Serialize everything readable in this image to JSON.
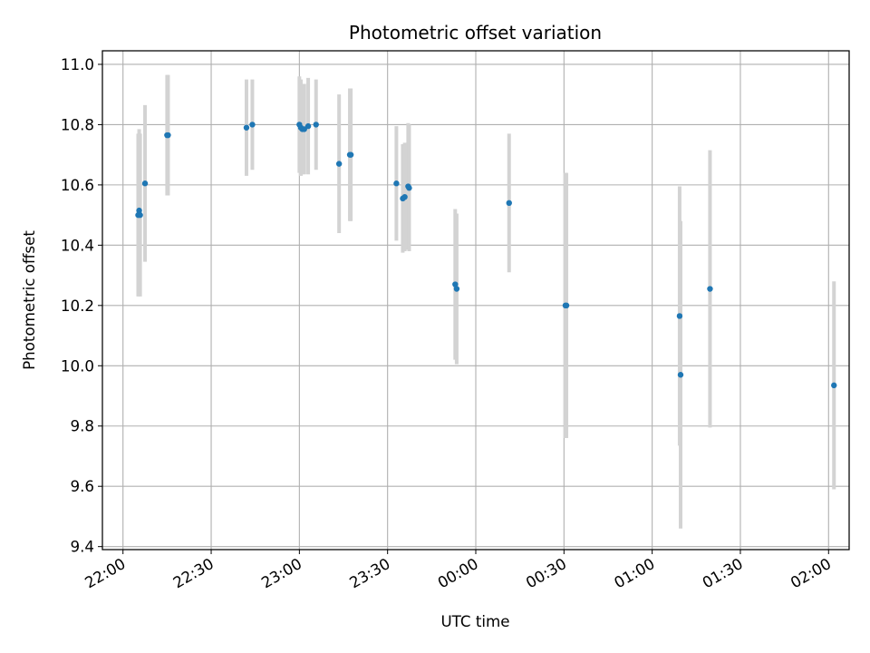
{
  "chart_data": {
    "type": "scatter",
    "title": "Photometric offset variation",
    "xlabel": "UTC time",
    "ylabel": "Photometric offset",
    "x_ticks": [
      "22:00",
      "22:30",
      "23:00",
      "23:30",
      "00:00",
      "00:30",
      "01:00",
      "01:30",
      "02:00"
    ],
    "x_range": [
      "21:53",
      "02:07"
    ],
    "y_ticks": [
      9.4,
      9.6,
      9.8,
      10.0,
      10.2,
      10.4,
      10.6,
      10.8,
      11.0
    ],
    "ylim": [
      9.39,
      11.045
    ],
    "grid": true,
    "marker_color": "#1f77b4",
    "errorbar_color": "#d3d3d3",
    "points": [
      {
        "time": "22:05:10",
        "y": 10.5,
        "err": 0.27
      },
      {
        "time": "22:05:30",
        "y": 10.515,
        "err": 0.27
      },
      {
        "time": "22:05:50",
        "y": 10.5,
        "err": 0.27
      },
      {
        "time": "22:07:30",
        "y": 10.605,
        "err": 0.26
      },
      {
        "time": "22:15:00",
        "y": 10.765,
        "err": 0.2
      },
      {
        "time": "22:15:20",
        "y": 10.765,
        "err": 0.2
      },
      {
        "time": "22:42:00",
        "y": 10.79,
        "err": 0.16
      },
      {
        "time": "22:44:00",
        "y": 10.8,
        "err": 0.15
      },
      {
        "time": "23:00:00",
        "y": 10.8,
        "err": 0.16
      },
      {
        "time": "23:00:30",
        "y": 10.79,
        "err": 0.16
      },
      {
        "time": "23:01:00",
        "y": 10.785,
        "err": 0.15
      },
      {
        "time": "23:01:40",
        "y": 10.785,
        "err": 0.15
      },
      {
        "time": "23:03:00",
        "y": 10.795,
        "err": 0.16
      },
      {
        "time": "23:05:40",
        "y": 10.8,
        "err": 0.15
      },
      {
        "time": "23:13:30",
        "y": 10.67,
        "err": 0.23
      },
      {
        "time": "23:17:10",
        "y": 10.7,
        "err": 0.22
      },
      {
        "time": "23:17:30",
        "y": 10.7,
        "err": 0.22
      },
      {
        "time": "23:33:00",
        "y": 10.605,
        "err": 0.19
      },
      {
        "time": "23:35:10",
        "y": 10.555,
        "err": 0.18
      },
      {
        "time": "23:35:50",
        "y": 10.56,
        "err": 0.18
      },
      {
        "time": "23:37:00",
        "y": 10.595,
        "err": 0.21
      },
      {
        "time": "23:37:20",
        "y": 10.59,
        "err": 0.21
      },
      {
        "time": "23:53:00",
        "y": 10.27,
        "err": 0.25
      },
      {
        "time": "23:53:30",
        "y": 10.255,
        "err": 0.25
      },
      {
        "time": "00:11:20",
        "y": 10.54,
        "err": 0.23
      },
      {
        "time": "00:30:30",
        "y": 10.2,
        "err": 0.44
      },
      {
        "time": "00:30:50",
        "y": 10.2,
        "err": 0.44
      },
      {
        "time": "01:09:20",
        "y": 10.165,
        "err": 0.43
      },
      {
        "time": "01:09:40",
        "y": 9.97,
        "err": 0.51
      },
      {
        "time": "01:19:40",
        "y": 10.255,
        "err": 0.46
      },
      {
        "time": "02:01:50",
        "y": 9.935,
        "err": 0.345
      }
    ]
  }
}
